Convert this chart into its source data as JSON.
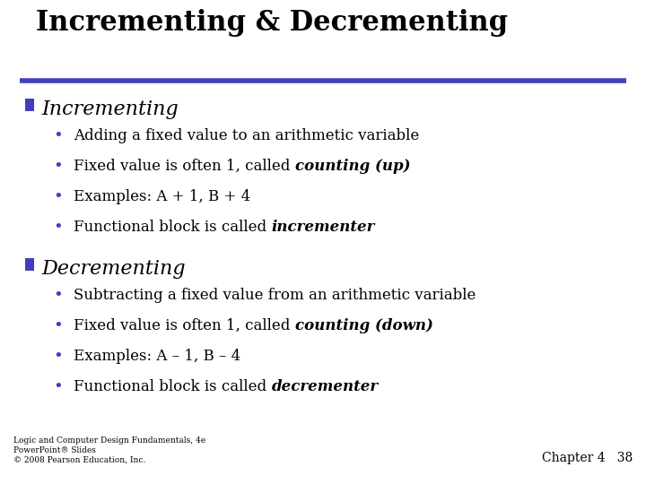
{
  "title": "Incrementing & Decrementing",
  "title_fontsize": 22,
  "title_color": "#000000",
  "line_color": "#3F3FBF",
  "bg_color": "#FFFFFF",
  "section_square_color": "#3F3FBF",
  "section1_label": "Incrementing",
  "section2_label": "Decrementing",
  "section_fontsize": 16,
  "bullet_fontsize": 12,
  "section1_bullets": [
    [
      "Adding a fixed value to an arithmetic variable",
      ""
    ],
    [
      "Fixed value is often 1, called ",
      "counting (up)",
      ")"
    ],
    [
      "Examples: A + 1, B + 4",
      ""
    ],
    [
      "Functional block is called ",
      "incrementer",
      ""
    ]
  ],
  "section2_bullets": [
    [
      "Subtracting a fixed value from an arithmetic variable",
      ""
    ],
    [
      "Fixed value is often 1, called ",
      "counting (down)",
      ")"
    ],
    [
      "Examples: A – 1, B – 4",
      ""
    ],
    [
      "Functional block is called ",
      "decrementer",
      ""
    ]
  ],
  "footer_text": "Logic and Computer Design Fundamentals, 4e\nPowerPoint® Slides\n© 2008 Pearson Education, Inc.",
  "footer_fontsize": 6.5,
  "chapter_text": "Chapter 4   38",
  "chapter_fontsize": 10
}
